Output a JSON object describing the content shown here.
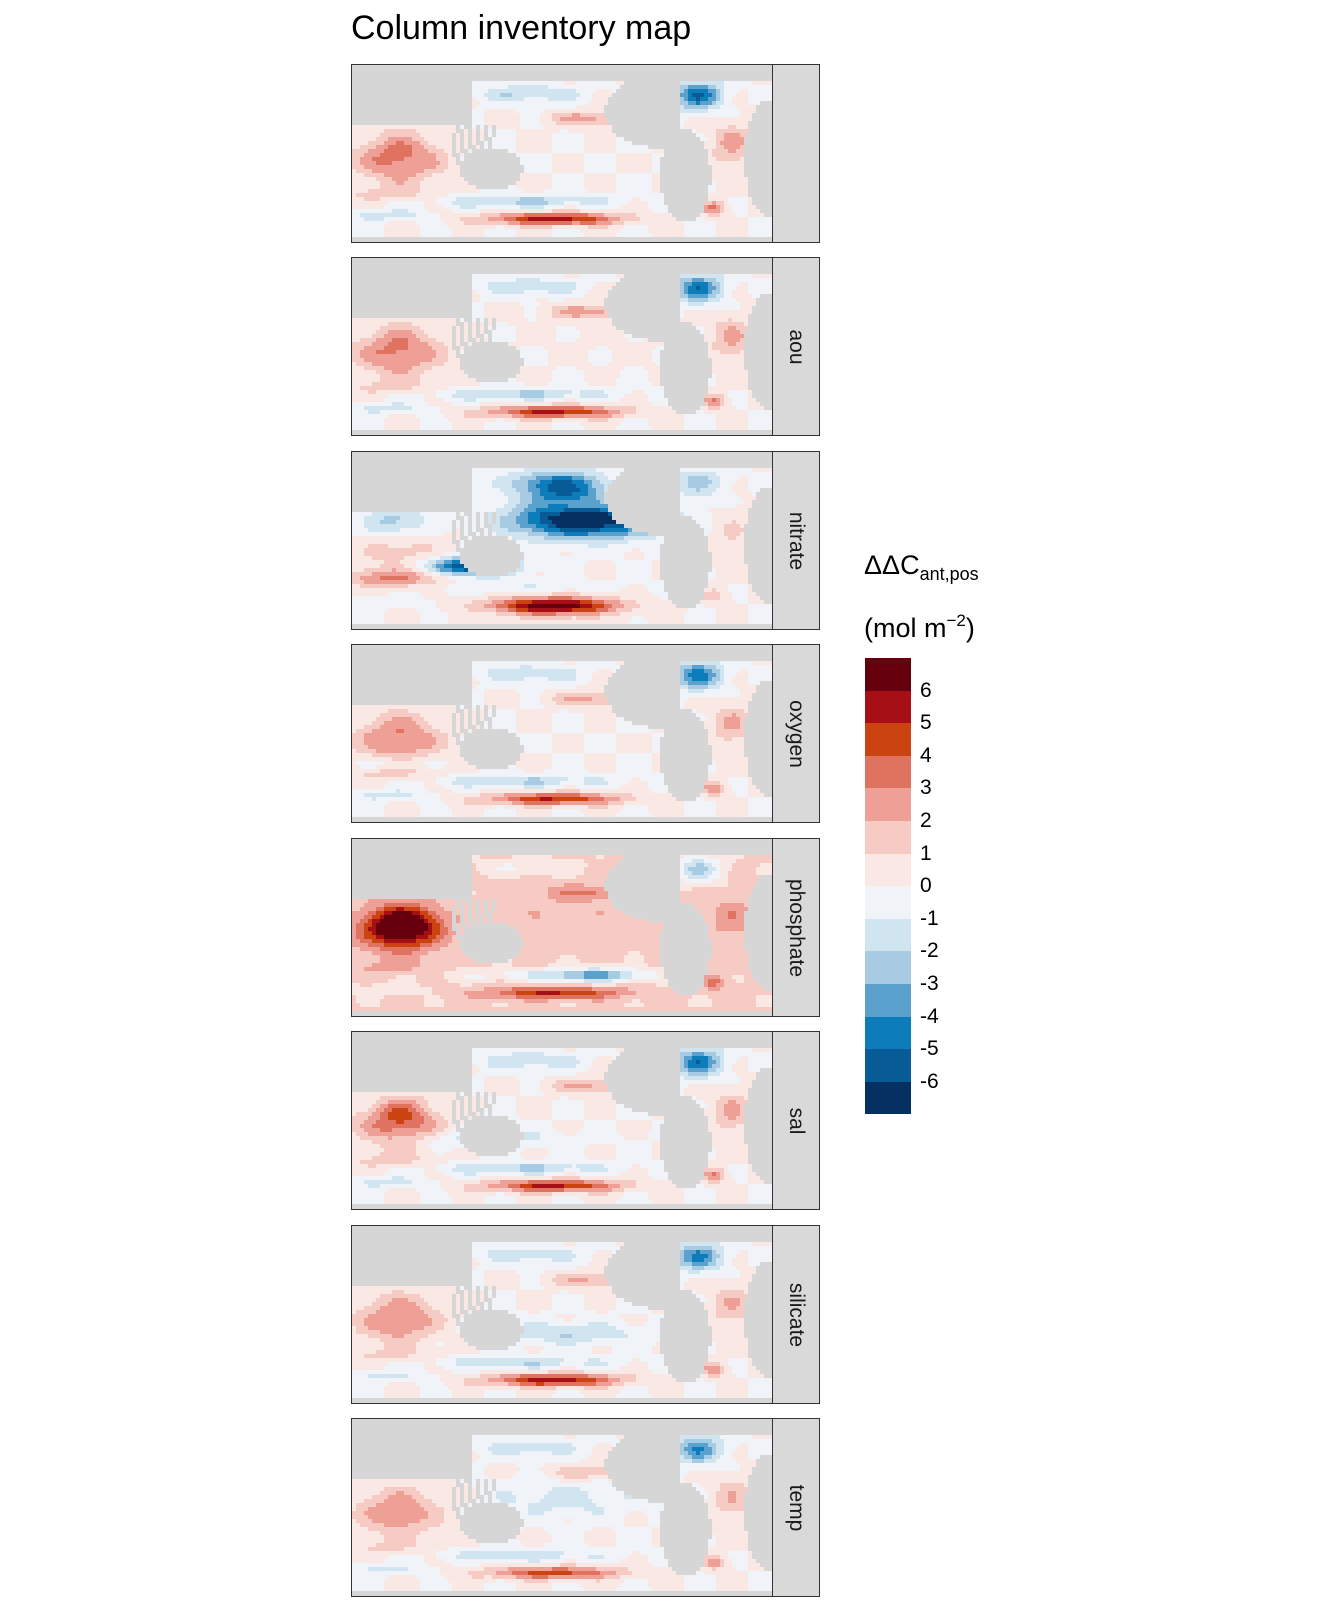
{
  "chart_data": {
    "type": "heatmap",
    "title": "Column inventory map",
    "legend": {
      "title_main": "ΔΔC",
      "title_sub": "ant,pos",
      "unit_main": "(mol m",
      "unit_exp": "−2",
      "unit_close": ")",
      "placement": "right",
      "ticks": [
        "6",
        "5",
        "4",
        "3",
        "2",
        "1",
        "0",
        "-1",
        "-2",
        "-3",
        "-4",
        "-5",
        "-6"
      ],
      "range": [
        -7,
        7
      ],
      "bin_colors": [
        "#67000d",
        "#a50f15",
        "#cb4310",
        "#df735f",
        "#eea096",
        "#f6cbc4",
        "#fae8e5",
        "#f0f4f8",
        "#d1e5f0",
        "#a6cbe2",
        "#5aa2cd",
        "#0c7cba",
        "#075b96",
        "#053061"
      ]
    },
    "panels": [
      {
        "label": "",
        "pattern": "base"
      },
      {
        "label": "aou",
        "pattern": "aou"
      },
      {
        "label": "nitrate",
        "pattern": "nitrate"
      },
      {
        "label": "oxygen",
        "pattern": "oxygen"
      },
      {
        "label": "phosphate",
        "pattern": "phosphate"
      },
      {
        "label": "sal",
        "pattern": "sal"
      },
      {
        "label": "silicate",
        "pattern": "silicate"
      },
      {
        "label": "temp",
        "pattern": "temp"
      }
    ],
    "land_color": "#d6d6d6"
  }
}
